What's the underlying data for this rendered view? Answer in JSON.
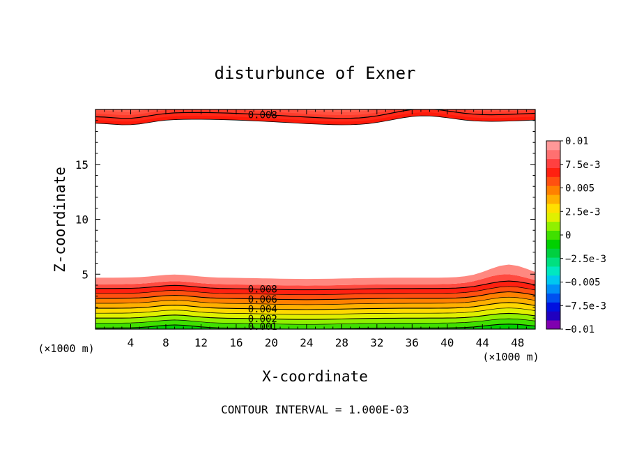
{
  "chart_data": {
    "type": "filled-contour",
    "title": "disturbunce of Exner",
    "xlabel": "X-coordinate",
    "ylabel": "Z-coordinate",
    "x_unit_label": "(×1000 m)",
    "y_unit_label": "(×1000 m)",
    "xlim": [
      0,
      50
    ],
    "ylim": [
      0,
      20
    ],
    "x_ticks": [
      "4",
      "8",
      "12",
      "16",
      "20",
      "24",
      "28",
      "32",
      "36",
      "40",
      "44",
      "48"
    ],
    "y_ticks": [
      "5",
      "10",
      "15"
    ],
    "footer": "CONTOUR INTERVAL = 1.000E-03",
    "levels": [
      -0.01,
      -0.009,
      -0.008,
      -0.007,
      -0.006,
      -0.005,
      -0.004,
      -0.003,
      -0.002,
      -0.001,
      0,
      0.001,
      0.002,
      0.003,
      0.004,
      0.005,
      0.006,
      0.007,
      0.008,
      0.009,
      0.01
    ],
    "contour_labels": [
      "0.008",
      "0.008",
      "0.006",
      "0.004",
      "0.002",
      "0.001"
    ],
    "colorbar": {
      "tick_labels": [
        "0.01",
        "7.5e-3",
        "0.005",
        "2.5e-3",
        "0",
        "−2.5e-3",
        "−0.005",
        "−7.5e-3",
        "−0.01"
      ],
      "colors": [
        "#8000b0",
        "#2000c0",
        "#0010e0",
        "#0050f0",
        "#0090f8",
        "#00c8f0",
        "#00e8c0",
        "#00e080",
        "#00d040",
        "#00d000",
        "#40e000",
        "#90f000",
        "#e0f000",
        "#ffe000",
        "#ffb000",
        "#ff8000",
        "#ff5010",
        "#ff2010",
        "#ff4040",
        "#ff7070",
        "#ff9898"
      ]
    }
  }
}
